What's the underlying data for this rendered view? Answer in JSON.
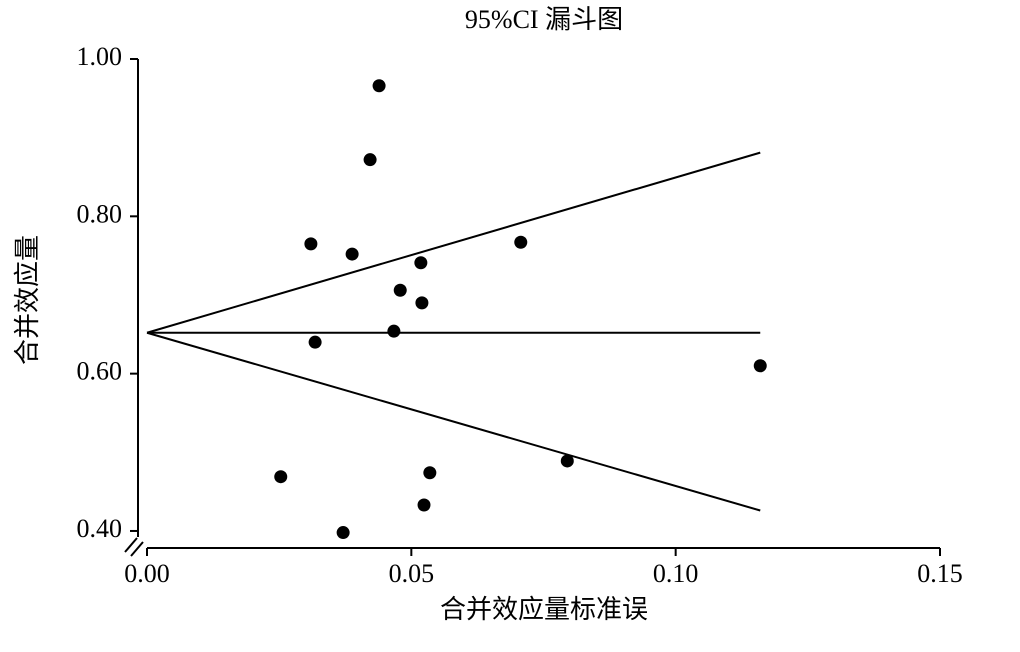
{
  "chart_data": {
    "type": "scatter",
    "title": "95%CI 漏斗图",
    "x_label": "合并效应量标准误",
    "y_label": "合并效应量",
    "x": [
      0.0439,
      0.0422,
      0.031,
      0.0388,
      0.0707,
      0.0518,
      0.0479,
      0.052,
      0.0467,
      0.0318,
      0.116,
      0.0795,
      0.0535,
      0.0253,
      0.0524,
      0.0371
    ],
    "values": [
      0.966,
      0.872,
      0.765,
      0.752,
      0.767,
      0.741,
      0.706,
      0.69,
      0.654,
      0.64,
      0.61,
      0.489,
      0.474,
      0.469,
      0.433,
      0.398
    ],
    "color": "#000000",
    "funnel": {
      "x": [
        0,
        0.116
      ],
      "upper": [
        0.652,
        0.881
      ],
      "center": [
        0.652,
        0.652
      ],
      "lower": [
        0.652,
        0.426
      ]
    },
    "xlim": [
      0,
      0.15
    ],
    "xticks": [
      {
        "value": 0,
        "label": "0.00"
      },
      {
        "value": 0.05,
        "label": "0.05"
      },
      {
        "value": 0.1,
        "label": "0.10"
      },
      {
        "value": 0.15,
        "label": "0.15"
      }
    ],
    "ylim": [
      0.38,
      1.0
    ],
    "yticks": [
      {
        "value": 0.4,
        "label": "0.40"
      },
      {
        "value": 0.6,
        "label": "0.60"
      },
      {
        "value": 0.8,
        "label": "0.80"
      },
      {
        "value": 1.0,
        "label": "1.00"
      }
    ]
  }
}
